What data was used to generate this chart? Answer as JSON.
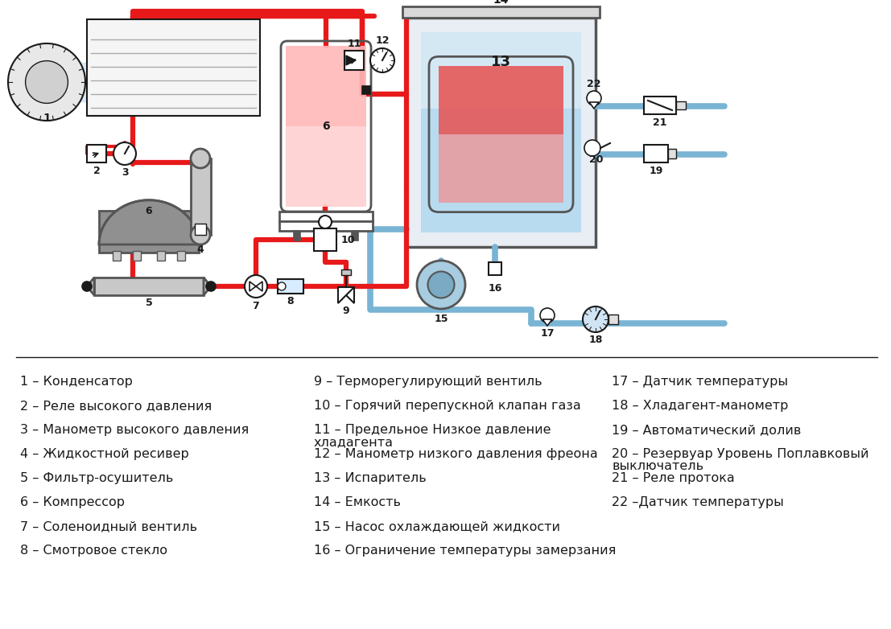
{
  "bg_color": "#ffffff",
  "red": "#e8191a",
  "blue_pipe": "#7ab4d4",
  "legend_col1": [
    "1 – Конденсатор",
    "2 – Реле высокого давления",
    "3 – Манометр высокого давления",
    "4 – Жидкостной ресивер",
    "5 – Фильтр-осушитель",
    "6 – Компрессор",
    "7 – Соленоидный вентиль",
    "8 – Смотровое стекло"
  ],
  "legend_col2": [
    "9 – Терморегулирующий вентиль",
    "10 – Горячий перепускной клапан газа",
    "11 – Предельное Низкое давление\nхладагента",
    "12 – Манометр низкого давления фреона",
    "13 – Испаритель",
    "14 – Емкость",
    "15 – Насос охлаждающей жидкости",
    "16 – Ограничение температуры замерзания"
  ],
  "legend_col3": [
    "17 – Датчик температуры",
    "18 – Хладагент-манометр",
    "19 – Автоматический долив",
    "20 – Резервуар Уровень Поплавковый\nвыключатель",
    "21 – Реле протока",
    "22 –Датчик температуры"
  ]
}
